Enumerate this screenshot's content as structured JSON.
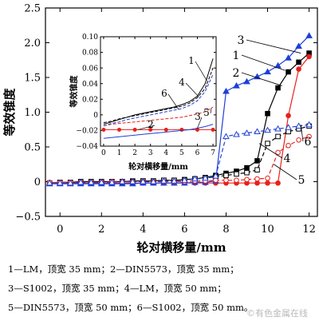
{
  "chart_data": [
    {
      "type": "line",
      "xlabel": "轮对横移量/mm",
      "ylabel": "等效锥度",
      "xlim": [
        -0.7,
        12.4
      ],
      "ylim": [
        -0.5,
        2.5
      ],
      "xticks": [
        0,
        2,
        4,
        6,
        8,
        10,
        12
      ],
      "yticks": [
        -0.5,
        0,
        0.5,
        1.0,
        1.5,
        2.0,
        2.5
      ],
      "ytick_labels": [
        "−0.5",
        "0",
        "0.5",
        "1.0",
        "1.5",
        "2.0",
        "2.5"
      ],
      "series": [
        {
          "name": "1",
          "color": "#000000",
          "marker": "square-filled",
          "line": "solid",
          "x": [
            -0.5,
            0,
            0.5,
            1,
            1.5,
            2,
            2.5,
            3,
            3.5,
            4,
            4.5,
            5,
            5.5,
            6,
            6.5,
            7,
            7.5,
            8,
            8.5,
            9,
            9.5,
            10,
            10.5,
            11,
            11.5,
            12
          ],
          "y": [
            -0.02,
            -0.01,
            -0.01,
            0,
            0,
            0,
            0,
            0,
            0.01,
            0.01,
            0.01,
            0.02,
            0.02,
            0.03,
            0.04,
            0.06,
            0.09,
            0.12,
            0.15,
            0.2,
            0.3,
            0.98,
            1.35,
            1.58,
            1.72,
            1.85
          ]
        },
        {
          "name": "2",
          "color": "#e8201b",
          "marker": "circle-filled",
          "line": "solid",
          "x": [
            -0.5,
            0,
            0.5,
            1,
            1.5,
            2,
            2.5,
            3,
            3.5,
            4,
            4.5,
            5,
            5.5,
            6,
            6.5,
            7,
            7.5,
            8,
            8.5,
            9,
            9.5,
            10,
            10.5,
            11,
            11.5,
            12
          ],
          "y": [
            -0.02,
            -0.02,
            -0.02,
            -0.02,
            -0.02,
            -0.02,
            -0.02,
            -0.02,
            -0.02,
            -0.02,
            -0.02,
            -0.02,
            -0.02,
            -0.02,
            -0.02,
            -0.02,
            -0.02,
            -0.02,
            -0.02,
            -0.02,
            -0.02,
            -0.02,
            -0.02,
            0.95,
            1.62,
            1.8
          ]
        },
        {
          "name": "3",
          "color": "#1f3fd6",
          "marker": "triangle-filled",
          "line": "solid",
          "x": [
            -0.5,
            0,
            0.5,
            1,
            1.5,
            2,
            2.5,
            3,
            3.5,
            4,
            4.5,
            5,
            5.5,
            6,
            6.5,
            7,
            7.5,
            8,
            8.5,
            9,
            9.5,
            10,
            10.5,
            11,
            11.5,
            12
          ],
          "y": [
            -0.03,
            -0.03,
            -0.03,
            -0.03,
            -0.03,
            -0.03,
            -0.03,
            -0.03,
            -0.03,
            -0.02,
            -0.02,
            -0.02,
            -0.02,
            -0.02,
            -0.01,
            -0.01,
            0.01,
            1.3,
            1.38,
            1.44,
            1.51,
            1.58,
            1.67,
            1.78,
            1.95,
            2.1
          ]
        },
        {
          "name": "4",
          "color": "#000000",
          "marker": "square-open",
          "line": "dashed",
          "x": [
            -0.5,
            0,
            0.5,
            1,
            1.5,
            2,
            2.5,
            3,
            3.5,
            4,
            4.5,
            5,
            5.5,
            6,
            6.5,
            7,
            7.5,
            8,
            8.5,
            9,
            9.5,
            10,
            10.5,
            11,
            11.5,
            12
          ],
          "y": [
            -0.02,
            -0.01,
            -0.01,
            0,
            0,
            0,
            0,
            0,
            0,
            0.01,
            0.01,
            0.02,
            0.02,
            0.02,
            0.04,
            0.05,
            0.07,
            0.09,
            0.11,
            0.13,
            0.17,
            0.55,
            0.65,
            0.72,
            0.76,
            0.8
          ]
        },
        {
          "name": "5",
          "color": "#e8201b",
          "marker": "circle-open",
          "line": "dashed",
          "x": [
            -0.5,
            0,
            0.5,
            1,
            1.5,
            2,
            2.5,
            3,
            3.5,
            4,
            4.5,
            5,
            5.5,
            6,
            6.5,
            7,
            7.5,
            8,
            8.5,
            9,
            9.5,
            10,
            10.5,
            11,
            11.5,
            12
          ],
          "y": [
            -0.01,
            -0.01,
            -0.01,
            -0.01,
            -0.01,
            -0.01,
            0,
            0,
            0,
            0,
            0,
            0,
            0,
            0,
            0.01,
            0.01,
            0.02,
            0.02,
            0.02,
            0.03,
            0.04,
            0.05,
            0.42,
            0.52,
            0.6,
            0.65
          ]
        },
        {
          "name": "6",
          "color": "#1f3fd6",
          "marker": "triangle-open",
          "line": "dashed",
          "x": [
            -0.5,
            0,
            0.5,
            1,
            1.5,
            2,
            2.5,
            3,
            3.5,
            4,
            4.5,
            5,
            5.5,
            6,
            6.5,
            7,
            7.5,
            8,
            8.5,
            9,
            9.5,
            10,
            10.5,
            11,
            11.5,
            12
          ],
          "y": [
            -0.02,
            -0.02,
            -0.02,
            -0.01,
            -0.01,
            -0.01,
            -0.01,
            0,
            0,
            0,
            0,
            0.01,
            0.01,
            0.02,
            0.04,
            0.05,
            0.08,
            0.65,
            0.68,
            0.7,
            0.72,
            0.74,
            0.76,
            0.78,
            0.8,
            0.82
          ]
        }
      ]
    },
    {
      "type": "line",
      "xlabel": "轮对横移量/mm",
      "ylabel": "等效锥度",
      "xlim": [
        -0.2,
        7.2
      ],
      "ylim": [
        -0.04,
        0.1
      ],
      "xticks": [
        0,
        1,
        2,
        3,
        4,
        5,
        6,
        7
      ],
      "yticks": [
        -0.04,
        -0.02,
        0,
        0.02,
        0.04,
        0.06,
        0.08,
        0.1
      ],
      "ytick_labels": [
        "−0.04",
        "−0.02",
        "0",
        "0.02",
        "0.04",
        "0.06",
        "0.08",
        "0.10"
      ],
      "series": [
        {
          "name": "1",
          "color": "#000000",
          "line": "solid",
          "x": [
            0,
            0.5,
            1,
            1.5,
            2,
            2.5,
            3,
            3.5,
            4,
            4.5,
            5,
            5.5,
            6,
            6.5,
            7
          ],
          "y": [
            -0.012,
            -0.009,
            -0.006,
            -0.003,
            0,
            0.002,
            0.004,
            0.006,
            0.008,
            0.01,
            0.013,
            0.017,
            0.024,
            0.04,
            0.072
          ]
        },
        {
          "name": "2",
          "color": "#e8201b",
          "line": "solid",
          "marker": "circle-filled",
          "x": [
            0,
            0.5,
            1,
            1.5,
            2,
            2.5,
            3,
            3.5,
            4,
            4.5,
            5,
            5.5,
            6,
            6.5,
            7
          ],
          "y": [
            -0.019,
            -0.019,
            -0.019,
            -0.019,
            -0.019,
            -0.019,
            -0.019,
            -0.019,
            -0.019,
            -0.019,
            -0.019,
            -0.019,
            -0.019,
            -0.019,
            -0.019
          ]
        },
        {
          "name": "3",
          "color": "#1f3fd6",
          "line": "solid",
          "x": [
            0,
            0.5,
            1,
            1.5,
            2,
            2.5,
            3,
            3.5,
            4,
            4.5,
            5,
            5.5,
            6,
            6.5,
            7
          ],
          "y": [
            -0.03,
            -0.029,
            -0.028,
            -0.027,
            -0.026,
            -0.025,
            -0.024,
            -0.023,
            -0.022,
            -0.021,
            -0.02,
            -0.019,
            -0.017,
            -0.015,
            -0.012
          ]
        },
        {
          "name": "4",
          "color": "#000000",
          "line": "dashed",
          "x": [
            0,
            0.5,
            1,
            1.5,
            2,
            2.5,
            3,
            3.5,
            4,
            4.5,
            5,
            5.5,
            6,
            6.5,
            7
          ],
          "y": [
            -0.01,
            -0.008,
            -0.005,
            -0.003,
            -0.001,
            0.001,
            0.003,
            0.005,
            0.007,
            0.009,
            0.011,
            0.015,
            0.022,
            0.034,
            0.06
          ]
        },
        {
          "name": "5",
          "color": "#e8201b",
          "line": "dashed",
          "x": [
            0,
            0.5,
            1,
            1.5,
            2,
            2.5,
            3,
            3.5,
            4,
            4.5,
            5,
            5.5,
            6,
            6.5,
            7
          ],
          "y": [
            -0.014,
            -0.012,
            -0.011,
            -0.01,
            -0.009,
            -0.008,
            -0.007,
            -0.006,
            -0.005,
            -0.004,
            -0.003,
            -0.001,
            0.001,
            0.004,
            0.01
          ]
        },
        {
          "name": "6",
          "color": "#1f3fd6",
          "line": "dashed",
          "x": [
            0,
            0.5,
            1,
            1.5,
            2,
            2.5,
            3,
            3.5,
            4,
            4.5,
            5,
            5.5,
            6,
            6.5,
            7
          ],
          "y": [
            -0.014,
            -0.011,
            -0.009,
            -0.006,
            -0.004,
            -0.002,
            0,
            0.002,
            0.004,
            0.006,
            0.008,
            0.012,
            0.018,
            0.03,
            0.052
          ]
        }
      ]
    }
  ],
  "caption": {
    "line1": "1—LM，顶宽 35 mm；2—DIN5573，顶宽 35 mm；",
    "line2": "3—S1002，顶宽 35 mm；4—LM，顶宽 50 mm；",
    "line3": "5—DIN5573，顶宽 50 mm；6—S1002，顶宽 50 mm。"
  },
  "watermark": "©有色金属在线"
}
